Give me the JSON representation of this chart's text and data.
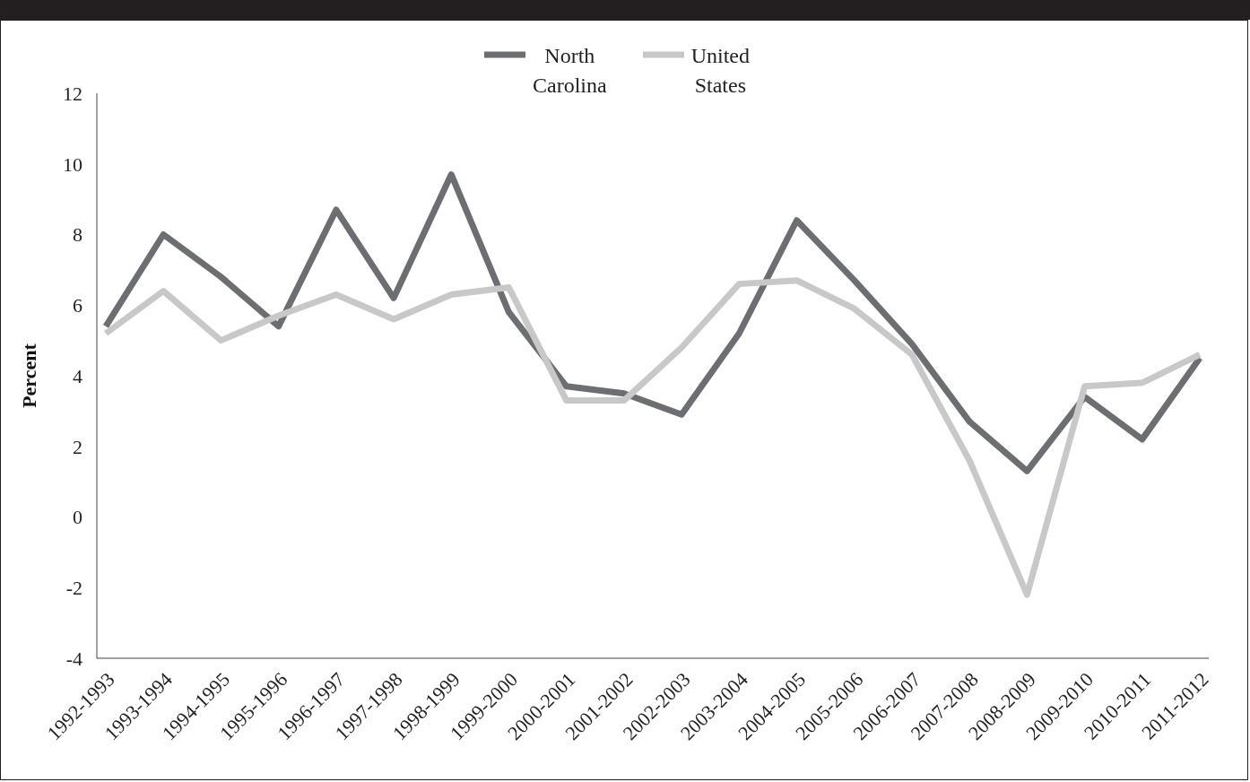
{
  "chart_data": {
    "type": "line",
    "ylabel": "Percent",
    "categories": [
      "1992-1993",
      "1993-1994",
      "1994-1995",
      "1995-1996",
      "1996-1997",
      "1997-1998",
      "1998-1999",
      "1999-2000",
      "2000-2001",
      "2001-2002",
      "2002-2003",
      "2003-2004",
      "2004-2005",
      "2005-2006",
      "2006-2007",
      "2007-2008",
      "2008-2009",
      "2009-2010",
      "2010-2011",
      "2011-2012"
    ],
    "series": [
      {
        "name": "North Carolina",
        "color": "#6d6e71",
        "values": [
          5.4,
          8.0,
          6.8,
          5.4,
          8.7,
          6.2,
          9.7,
          5.8,
          3.7,
          3.5,
          2.9,
          5.2,
          8.4,
          6.7,
          4.9,
          2.7,
          1.3,
          3.4,
          2.2,
          4.5
        ]
      },
      {
        "name": "United States",
        "color": "#c8c8c8",
        "values": [
          5.2,
          6.4,
          5.0,
          5.7,
          6.3,
          5.6,
          6.3,
          6.5,
          3.3,
          3.3,
          4.8,
          6.6,
          6.7,
          5.9,
          4.6,
          1.6,
          -2.2,
          3.7,
          3.8,
          4.6
        ]
      }
    ],
    "ylim": [
      -4,
      12
    ],
    "yticks": [
      -4,
      -2,
      0,
      2,
      4,
      6,
      8,
      10,
      12
    ],
    "grid": false,
    "legend": "top",
    "marker": "none",
    "line_style": "solid"
  }
}
